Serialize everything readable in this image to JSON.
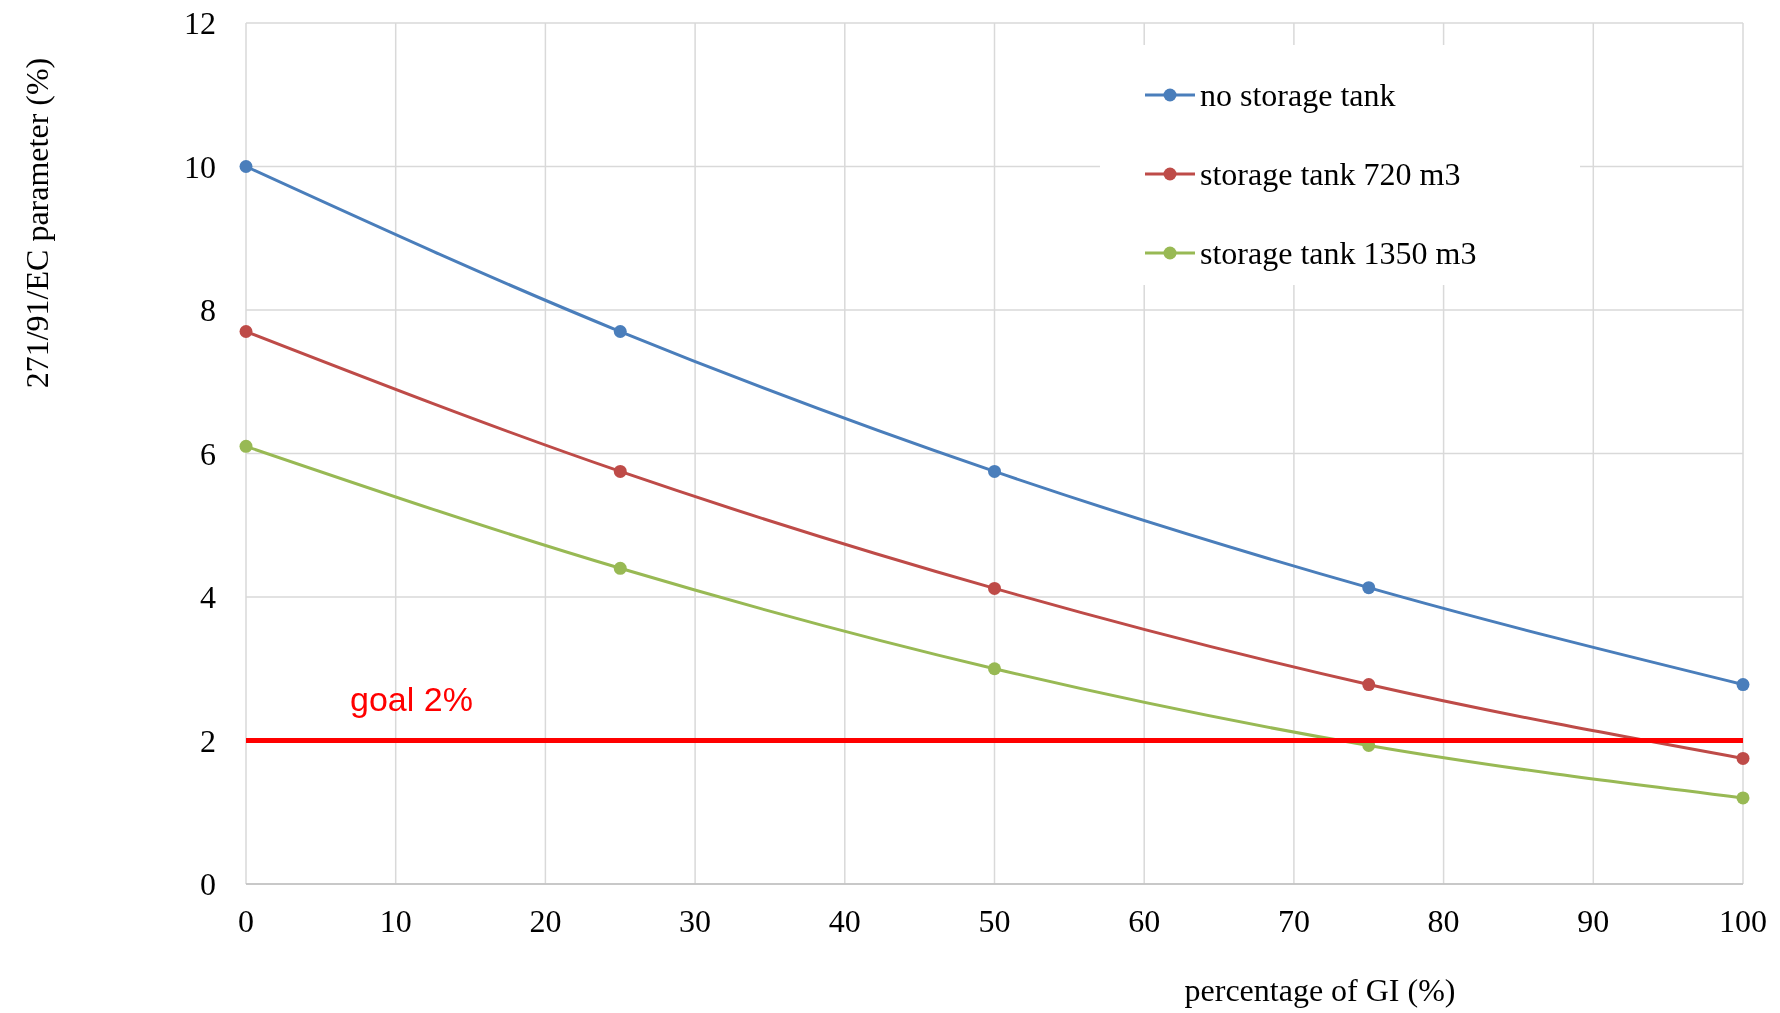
{
  "chart_data": {
    "type": "line",
    "xlabel": "percentage of GI (%)",
    "ylabel": "271/91/EC parameter (%)",
    "x": [
      0,
      25,
      50,
      75,
      100
    ],
    "series": [
      {
        "name": "no storage tank",
        "color": "#4a7ebb",
        "values": [
          10,
          7.7,
          5.75,
          4.13,
          2.78
        ]
      },
      {
        "name": "storage tank 720 m3",
        "color": "#be4b48",
        "values": [
          7.7,
          5.75,
          4.12,
          2.78,
          1.75
        ]
      },
      {
        "name": "storage tank 1350 m3",
        "color": "#98b954",
        "values": [
          6.1,
          4.4,
          3.0,
          1.93,
          1.2
        ]
      }
    ],
    "xlim": [
      0,
      100
    ],
    "xticks": [
      0,
      10,
      20,
      30,
      40,
      50,
      60,
      70,
      80,
      90,
      100
    ],
    "ylim": [
      0,
      12
    ],
    "yticks": [
      0,
      2,
      4,
      6,
      8,
      10,
      12
    ],
    "grid": true,
    "legend": "top right",
    "marker": "circle",
    "line_style": "solid",
    "ref_lines": [
      {
        "axis": "y",
        "value": 2,
        "label": "goal 2%",
        "color": "#ff0000"
      }
    ]
  }
}
